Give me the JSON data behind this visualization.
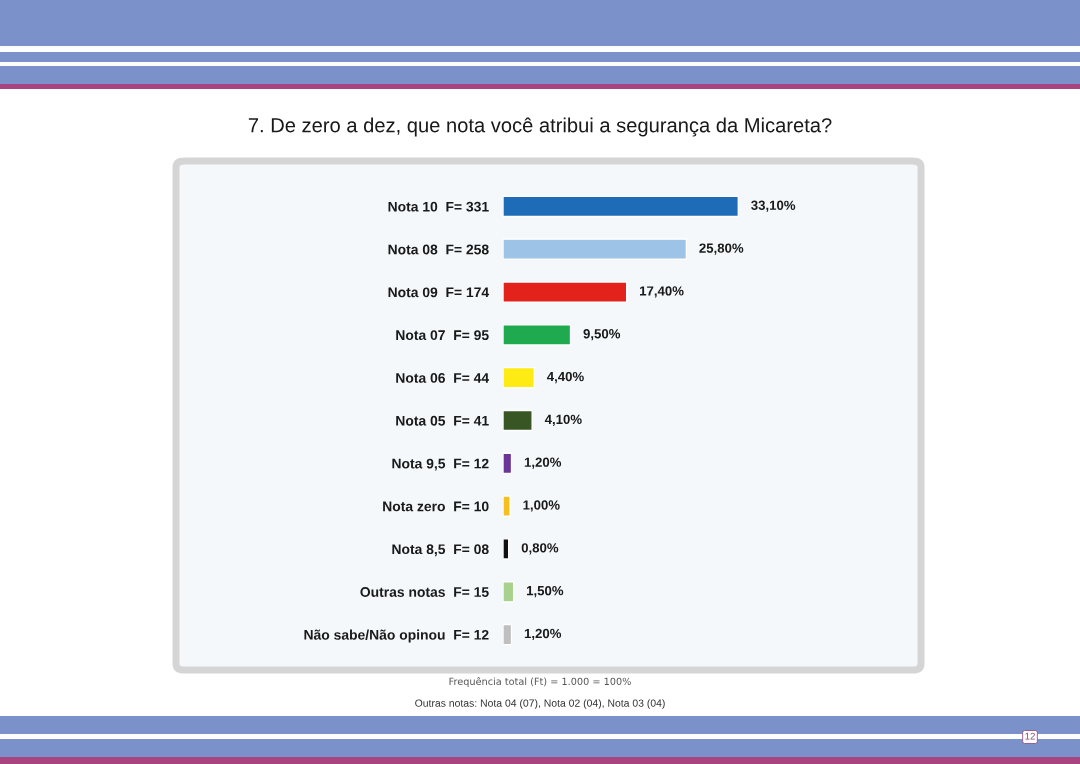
{
  "chart_data": {
    "type": "bar",
    "orientation": "horizontal",
    "title": "7. De zero a dez, que nota você atribui a segurança da Micareta?",
    "categories": [
      "Nota 10  F= 331",
      "Nota 08  F= 258",
      "Nota 09  F= 174",
      "Nota 07  F= 95",
      "Nota 06  F= 44",
      "Nota 05  F= 41",
      "Nota 9,5  F= 12",
      "Nota zero  F= 10",
      "Nota 8,5  F= 08",
      "Outras notas  F= 15",
      "Não sabe/Não opinou  F= 12"
    ],
    "values": [
      33.1,
      25.8,
      17.4,
      9.5,
      4.4,
      4.1,
      1.2,
      1.0,
      0.8,
      1.5,
      1.2
    ],
    "colors": [
      "#1e6bb8",
      "#9dc3e6",
      "#e3221b",
      "#1faa4f",
      "#ffeb14",
      "#375623",
      "#6a3596",
      "#f7be1d",
      "#111111",
      "#a9d18e",
      "#bfbfbf"
    ],
    "value_labels": [
      "33,10%",
      "25,80%",
      "17,40%",
      "9,50%",
      "4,40%",
      "4,10%",
      "1,20%",
      "1,00%",
      "0,80%",
      "1,50%",
      "1,20%"
    ],
    "tick_labels": "y",
    "annotations": [
      "Frequência total (Ft) = 1.000 = 100%",
      "Outras notas: Nota 04 (07), Nota 02 (04), Nota 03 (04)",
      "12"
    ]
  }
}
